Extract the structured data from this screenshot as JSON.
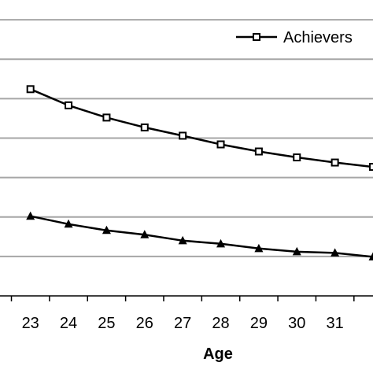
{
  "chart_data": {
    "type": "line",
    "title": "",
    "xlabel": "Age",
    "ylabel": "",
    "x": [
      23,
      24,
      25,
      26,
      27,
      28,
      29,
      30,
      31,
      32
    ],
    "x_tick_labels": [
      "23",
      "24",
      "25",
      "26",
      "27",
      "28",
      "29",
      "30",
      "31"
    ],
    "xlim": [
      22.2,
      32
    ],
    "y_grid_levels": [
      1,
      2,
      3,
      4,
      5,
      6,
      7
    ],
    "ylim": [
      0,
      7.5
    ],
    "grid": "horizontal",
    "legend_position": "top-right",
    "series": [
      {
        "name": "Achievers",
        "marker": "square",
        "color": "#000000",
        "values": [
          5.24,
          4.83,
          4.52,
          4.27,
          4.06,
          3.84,
          3.66,
          3.51,
          3.38,
          3.27
        ]
      },
      {
        "name": "",
        "marker": "triangle",
        "color": "#000000",
        "values": [
          2.02,
          1.82,
          1.66,
          1.55,
          1.4,
          1.32,
          1.2,
          1.12,
          1.09,
          0.99
        ]
      }
    ]
  }
}
